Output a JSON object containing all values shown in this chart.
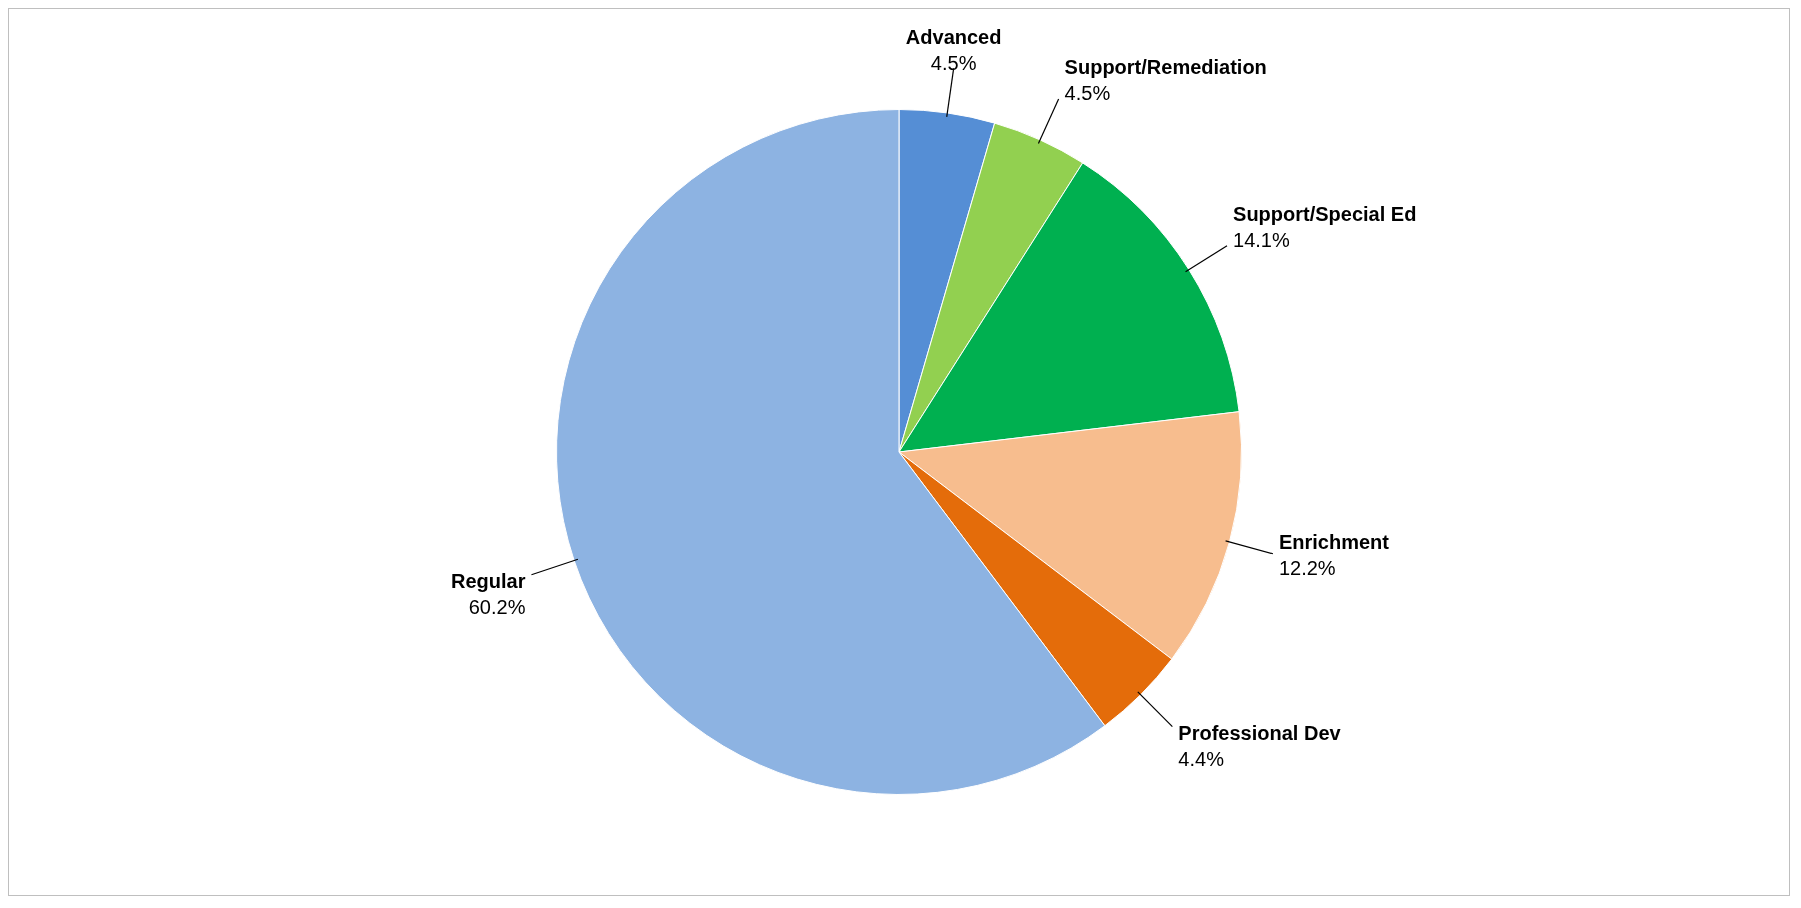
{
  "chart_data": {
    "type": "pie",
    "categories": [
      "Advanced",
      "Support/Remediation",
      "Support/Special Ed",
      "Enrichment",
      "Professional Dev",
      "Regular"
    ],
    "values": [
      4.5,
      4.5,
      14.1,
      12.2,
      4.4,
      60.2
    ],
    "value_labels": [
      "4.5%",
      "4.5%",
      "14.1%",
      "12.2%",
      "4.4%",
      "60.2%"
    ],
    "colors": [
      "#558ed5",
      "#92d050",
      "#00b050",
      "#f7bd8e",
      "#e46c0a",
      "#8db3e2"
    ],
    "legend": false
  }
}
